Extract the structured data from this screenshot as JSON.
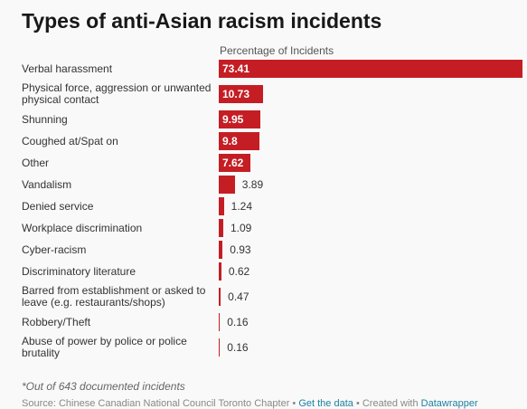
{
  "title": "Types of anti-Asian racism incidents",
  "column_header": "Percentage of Incidents",
  "footnote": "*Out of 643 documented incidents",
  "source": {
    "prefix": "Source: Chinese Canadian National Council Toronto Chapter • ",
    "get_data": "Get the data",
    "middle": " • Created with ",
    "tool": "Datawrapper"
  },
  "colors": {
    "bar": "#c41e24",
    "background": "#f9f9f9"
  },
  "chart_data": {
    "type": "bar",
    "orientation": "horizontal",
    "categories": [
      "Verbal harassment",
      "Physical force, aggression or unwanted physical contact",
      "Shunning",
      "Coughed at/Spat on",
      "Other",
      "Vandalism",
      "Denied service",
      "Workplace discrimination",
      "Cyber-racism",
      "Discriminatory literature",
      "Barred from establishment or asked to leave (e.g. restaurants/shops)",
      "Robbery/Theft",
      "Abuse of power by police or police brutality"
    ],
    "values": [
      73.41,
      10.73,
      9.95,
      9.8,
      7.62,
      3.89,
      1.24,
      1.09,
      0.93,
      0.62,
      0.47,
      0.16,
      0.16
    ],
    "title": "Types of anti-Asian racism incidents",
    "xlabel": "Percentage of Incidents",
    "ylabel": "",
    "xlim": [
      0,
      73.41
    ]
  }
}
